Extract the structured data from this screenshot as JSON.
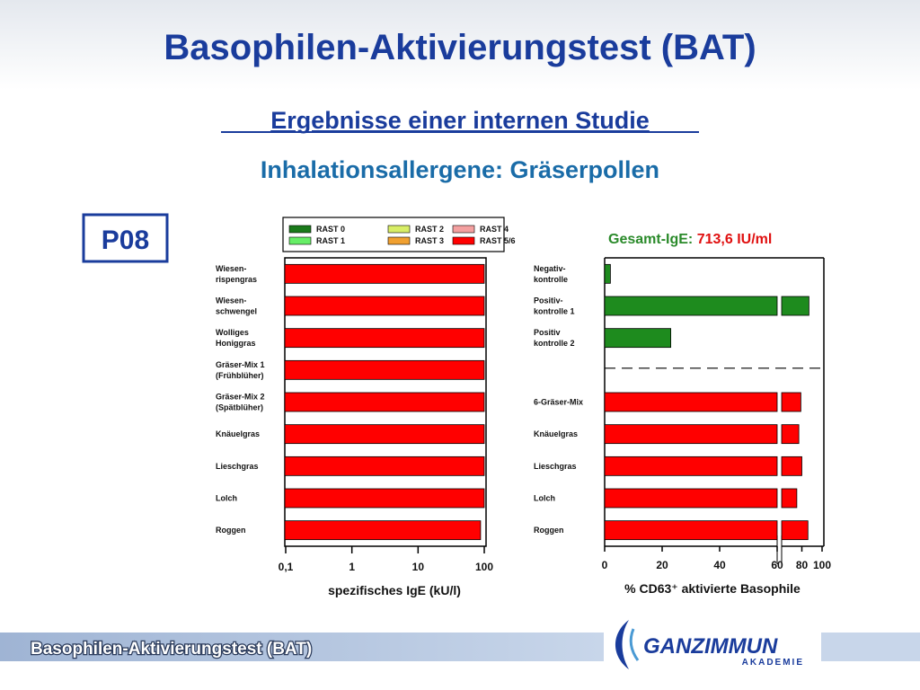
{
  "slide": {
    "title": "Basophilen-Aktivierungstest (BAT)",
    "subtitle": "Ergebnisse einer internen Studie",
    "heading": "Inhalationsallergene: Gräserpollen",
    "patient": "P08",
    "footer": "Basophilen-Aktivierungstest (BAT)",
    "logo": {
      "brand_left": "GANZ",
      "brand_right": "IMMUN",
      "sub": "AKADEMIE"
    }
  },
  "chart_data": [
    {
      "type": "hbar",
      "categories": [
        [
          "Wiesen-",
          "rispengras"
        ],
        [
          "Wiesen-",
          "schwengel"
        ],
        [
          "Wolliges",
          "Honiggras"
        ],
        [
          "Gräser-Mix 1",
          "(Frühblüher)"
        ],
        [
          "Gräser-Mix 2",
          "(Spätblüher)"
        ],
        [
          "Knäuelgras"
        ],
        [
          "Lieschgras"
        ],
        [
          "Lolch"
        ],
        [
          "Roggen"
        ]
      ],
      "values": [
        100,
        100,
        100,
        100,
        100,
        100,
        100,
        100,
        88
      ],
      "colors": [
        "#ff0000",
        "#ff0000",
        "#ff0000",
        "#ff0000",
        "#ff0000",
        "#ff0000",
        "#ff0000",
        "#ff0000",
        "#ff0000"
      ],
      "legend": [
        {
          "name": "RAST 0",
          "color": "#1a7a1a"
        },
        {
          "name": "RAST 1",
          "color": "#66ee66"
        },
        {
          "name": "RAST 2",
          "color": "#d8ee66"
        },
        {
          "name": "RAST 3",
          "color": "#f0a030"
        },
        {
          "name": "RAST 4",
          "color": "#f4a0a0"
        },
        {
          "name": "RAST 5/6",
          "color": "#ff0000"
        }
      ],
      "x_label": "spezifisches IgE (kU/l)",
      "log_scale": true,
      "xlim": [
        0.1,
        100
      ],
      "xticks": [
        {
          "value": 0.1,
          "label": "0,1"
        },
        1,
        10,
        100
      ]
    },
    {
      "type": "hbar_broken",
      "annotation": {
        "label": "Gesamt-IgE:",
        "value": "713,6 IU/ml"
      },
      "categories": [
        [
          "Negativ-",
          "kontrolle"
        ],
        [
          "Positiv-",
          "kontrolle 1"
        ],
        [
          "Positiv",
          "kontrolle 2"
        ],
        null,
        [
          "6-Gräser-Mix"
        ],
        [
          "Knäuelgras"
        ],
        [
          "Lieschgras"
        ],
        [
          "Lolch"
        ],
        [
          "Roggen"
        ]
      ],
      "values": [
        2,
        87,
        23,
        null,
        79,
        77,
        80,
        75,
        86
      ],
      "colors": [
        "#1e8b1e",
        "#1e8b1e",
        "#1e8b1e",
        null,
        "#ff0000",
        "#ff0000",
        "#ff0000",
        "#ff0000",
        "#ff0000"
      ],
      "x_label": "% CD63⁺ aktivierte Basophile",
      "axis_break": 60,
      "xlim": [
        0,
        100
      ],
      "xticks": [
        0,
        20,
        40,
        60,
        80,
        100
      ]
    }
  ]
}
